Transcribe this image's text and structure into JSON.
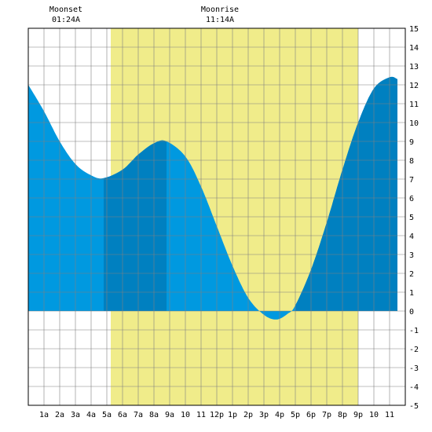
{
  "chart_data": {
    "type": "area",
    "title": "",
    "xlabel": "",
    "ylabel": "",
    "xlim": [
      0.0,
      24.0
    ],
    "ylim": [
      -5,
      15
    ],
    "grid": true,
    "x_tick_labels": [
      "1a",
      "2a",
      "3a",
      "4a",
      "5a",
      "6a",
      "7a",
      "8a",
      "9a",
      "10",
      "11",
      "12p",
      "1p",
      "2p",
      "3p",
      "4p",
      "5p",
      "6p",
      "7p",
      "8p",
      "9p",
      "10",
      "11"
    ],
    "y_tick_labels": [
      "-5",
      "-4",
      "-3",
      "-2",
      "-1",
      "0",
      "1",
      "2",
      "3",
      "4",
      "5",
      "6",
      "7",
      "8",
      "9",
      "10",
      "11",
      "12",
      "13",
      "14",
      "15"
    ],
    "daylight": {
      "start": 5.25,
      "end": 21.0,
      "color": "#f0ec8a"
    },
    "tide_color": "#0099e0",
    "highlight_color": "#0080c0",
    "highlight_ranges": [
      [
        4.8,
        8.8
      ],
      [
        17.0,
        23.5
      ]
    ],
    "series": [
      {
        "x": [
          0.0,
          1.0,
          2.0,
          3.0,
          4.0,
          4.8,
          6.0,
          7.0,
          8.0,
          8.8,
          10.0,
          11.0,
          12.0,
          13.0,
          14.0,
          15.0,
          15.8,
          16.5,
          17.0,
          18.0,
          19.0,
          20.0,
          21.0,
          22.0,
          23.0,
          23.5
        ],
        "y": [
          12.0,
          10.6,
          9.0,
          7.8,
          7.2,
          7.05,
          7.5,
          8.3,
          8.9,
          9.0,
          8.2,
          6.6,
          4.5,
          2.4,
          0.7,
          -0.2,
          -0.45,
          -0.15,
          0.3,
          2.2,
          4.7,
          7.5,
          10.0,
          11.8,
          12.4,
          12.3
        ]
      }
    ],
    "annotations": [
      {
        "name": "moonset",
        "label": "Moonset",
        "time": "01:24A",
        "x": 2.4
      },
      {
        "name": "moonrise",
        "label": "Moonrise",
        "time": "11:14A",
        "x": 12.2
      }
    ]
  }
}
